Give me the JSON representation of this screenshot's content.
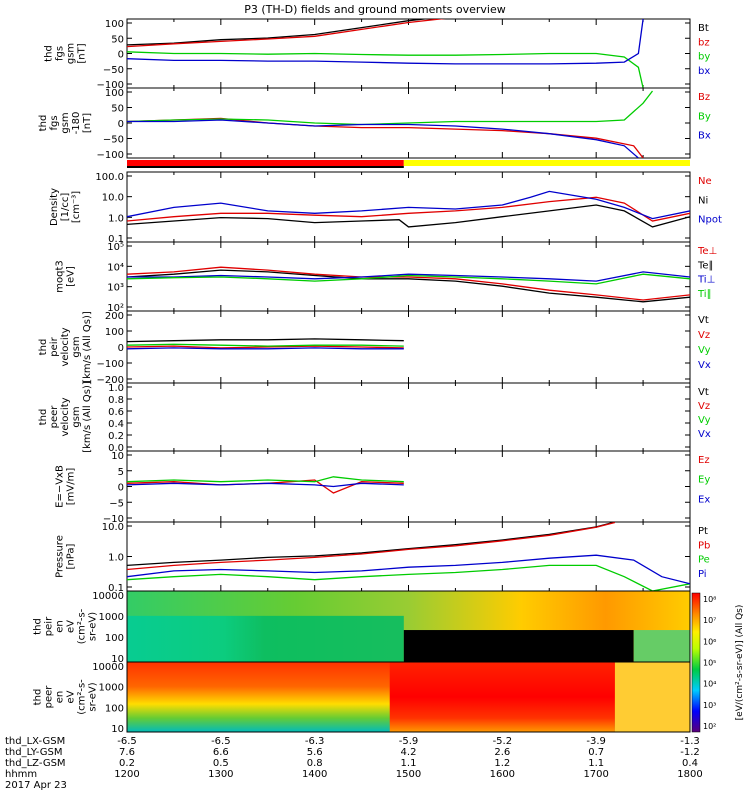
{
  "title": "P3 (TH-D) fields and ground moments overview",
  "date_label": "2017 Apr 23",
  "colors": {
    "black": "#000000",
    "red": "#e00000",
    "green": "#00cc00",
    "blue": "#0000cc",
    "yellow": "#ffff00",
    "bar_red": "#ff0000"
  },
  "chart_data": [
    {
      "type": "line",
      "panel": "fgs_gsm",
      "ylabel": [
        "thd",
        "fgs",
        "gsm",
        "[nT]"
      ],
      "yticks": [
        "100",
        "50",
        "0",
        "−50",
        "−100"
      ],
      "ylim": [
        -100,
        100
      ],
      "series": [
        {
          "name": "Bt",
          "color": "black",
          "x": [
            12.0,
            12.5,
            13.0,
            13.5,
            14.0,
            14.5,
            15.0,
            15.5,
            15.9
          ],
          "y": [
            25,
            30,
            40,
            45,
            55,
            75,
            95,
            110,
            150
          ]
        },
        {
          "name": "bz",
          "color": "red",
          "x": [
            12.0,
            12.5,
            13.0,
            13.5,
            14.0,
            14.5,
            15.0,
            15.5,
            15.9
          ],
          "y": [
            20,
            28,
            35,
            42,
            50,
            70,
            90,
            105,
            130
          ]
        },
        {
          "name": "by",
          "color": "green",
          "x": [
            12.0,
            12.5,
            13.0,
            13.5,
            14.0,
            14.5,
            15.0,
            15.5,
            16.0,
            16.5,
            17.0,
            17.3,
            17.45,
            17.5
          ],
          "y": [
            5,
            0,
            0,
            -2,
            0,
            -3,
            -5,
            -5,
            -3,
            0,
            0,
            -10,
            -40,
            -100
          ]
        },
        {
          "name": "bx",
          "color": "blue",
          "x": [
            12.0,
            12.5,
            13.0,
            13.5,
            14.0,
            14.5,
            15.0,
            15.5,
            16.0,
            16.5,
            17.0,
            17.3,
            17.45,
            17.5
          ],
          "y": [
            -15,
            -20,
            -20,
            -22,
            -22,
            -25,
            -28,
            -30,
            -30,
            -30,
            -28,
            -25,
            0,
            100
          ]
        }
      ]
    },
    {
      "type": "line",
      "panel": "fgs_gse",
      "ylabel": [
        "thd",
        "fgs",
        "gsm",
        "-180",
        "[nT]"
      ],
      "yticks": [
        "100",
        "50",
        "0",
        "−50",
        "−100"
      ],
      "ylim": [
        -120,
        110
      ],
      "series": [
        {
          "name": "Bz",
          "color": "red",
          "x": [
            12.0,
            12.5,
            13.0,
            13.5,
            14.0,
            14.5,
            15.0,
            15.5,
            16.0,
            16.5,
            17.0,
            17.4,
            17.5
          ],
          "y": [
            0,
            5,
            10,
            -5,
            -15,
            -20,
            -20,
            -25,
            -30,
            -40,
            -55,
            -80,
            -120
          ]
        },
        {
          "name": "By",
          "color": "green",
          "x": [
            12.0,
            12.5,
            13.0,
            13.5,
            14.0,
            14.5,
            15.0,
            15.5,
            16.0,
            16.5,
            17.0,
            17.3,
            17.5,
            17.6
          ],
          "y": [
            0,
            5,
            8,
            5,
            -5,
            -10,
            -5,
            0,
            0,
            0,
            0,
            5,
            60,
            100
          ]
        },
        {
          "name": "Bx",
          "color": "blue",
          "x": [
            12.0,
            12.5,
            13.0,
            13.5,
            14.0,
            14.5,
            15.0,
            15.5,
            16.0,
            16.5,
            17.0,
            17.3,
            17.45
          ],
          "y": [
            0,
            0,
            5,
            -5,
            -15,
            -10,
            -10,
            -15,
            -25,
            -40,
            -60,
            -80,
            -120
          ]
        }
      ]
    },
    {
      "type": "line",
      "panel": "density",
      "log_scale": true,
      "ylabel": [
        "Density",
        "[1/cc]",
        "[cm⁻³]"
      ],
      "yticks": [
        "100.0",
        "10.0",
        "1.0",
        "0.1"
      ],
      "ylim": [
        0.05,
        200
      ],
      "series": [
        {
          "name": "Ne",
          "color": "red",
          "x": [
            12.0,
            12.5,
            13.0,
            13.5,
            14.0,
            14.5,
            15.0,
            15.5,
            16.0,
            16.5,
            17.0,
            17.3,
            17.6,
            18.0
          ],
          "y": [
            0.6,
            1.0,
            1.5,
            1.5,
            1.2,
            1.0,
            1.5,
            2.0,
            3.0,
            6.0,
            10.0,
            5.0,
            0.6,
            1.5
          ]
        },
        {
          "name": "Ni",
          "color": "black",
          "x": [
            12.0,
            12.5,
            13.0,
            13.5,
            14.0,
            14.5,
            14.9,
            15.0,
            15.5,
            16.0,
            16.5,
            17.0,
            17.3,
            17.6,
            18.0
          ],
          "y": [
            0.4,
            0.6,
            0.9,
            0.8,
            0.5,
            0.6,
            0.7,
            0.3,
            0.5,
            1.0,
            2.0,
            4.0,
            2.0,
            0.3,
            1.0
          ]
        },
        {
          "name": "Npot",
          "color": "blue",
          "x": [
            12.0,
            12.5,
            13.0,
            13.5,
            14.0,
            14.5,
            15.0,
            15.5,
            16.0,
            16.3,
            16.5,
            17.0,
            17.3,
            17.6,
            18.0
          ],
          "y": [
            1.0,
            3.0,
            5.0,
            2.0,
            1.5,
            2.0,
            3.0,
            2.5,
            4.0,
            10.0,
            20.0,
            8.0,
            3.0,
            0.8,
            2.0
          ]
        }
      ]
    },
    {
      "type": "line",
      "panel": "temperature",
      "log_scale": true,
      "ylabel": [
        "moqt3",
        "[eV]"
      ],
      "yticks": [
        "10⁵",
        "10⁴",
        "10³",
        "10²"
      ],
      "ylim": [
        100,
        100000
      ],
      "series": [
        {
          "name": "Te⊥",
          "color": "red",
          "x": [
            12.0,
            12.5,
            13.0,
            13.5,
            14.0,
            14.5,
            15.0,
            15.5,
            16.0,
            16.5,
            17.0,
            17.5,
            18.0
          ],
          "y": [
            4000,
            5000,
            8000,
            6000,
            4000,
            3000,
            3000,
            2500,
            1500,
            800,
            500,
            300,
            500
          ]
        },
        {
          "name": "Te∥",
          "color": "black",
          "x": [
            12.0,
            12.5,
            13.0,
            13.5,
            14.0,
            14.5,
            15.0,
            15.5,
            16.0,
            16.5,
            17.0,
            17.5,
            18.0
          ],
          "y": [
            3000,
            4000,
            6000,
            5000,
            3500,
            2500,
            2500,
            2000,
            1200,
            600,
            400,
            250,
            400
          ]
        },
        {
          "name": "Ti⊥",
          "color": "blue",
          "x": [
            12.0,
            12.5,
            13.0,
            13.5,
            14.0,
            14.5,
            15.0,
            15.5,
            16.0,
            16.5,
            17.0,
            17.5,
            18.0
          ],
          "y": [
            3000,
            3000,
            3500,
            3000,
            2500,
            3000,
            4000,
            3500,
            3000,
            2500,
            2000,
            5000,
            3000
          ]
        },
        {
          "name": "Ti∥",
          "color": "green",
          "x": [
            12.0,
            12.5,
            13.0,
            13.5,
            14.0,
            14.5,
            15.0,
            15.5,
            16.0,
            16.5,
            17.0,
            17.5,
            18.0
          ],
          "y": [
            2500,
            2800,
            3000,
            2500,
            2000,
            2500,
            3500,
            3000,
            2500,
            2000,
            1500,
            4000,
            2500
          ]
        }
      ]
    },
    {
      "type": "line",
      "panel": "peir_velocity",
      "ylabel": [
        "thd",
        "peir",
        "velocity",
        "gsm",
        "[km/s (All Qs)]"
      ],
      "yticks": [
        "200",
        "100",
        "0",
        "−100",
        "−200"
      ],
      "ylim": [
        -200,
        200
      ],
      "series": [
        {
          "name": "Vt",
          "color": "black",
          "x": [
            12.0,
            12.5,
            13.0,
            13.5,
            14.0,
            14.5,
            14.95
          ],
          "y": [
            30,
            35,
            40,
            40,
            45,
            40,
            35
          ]
        },
        {
          "name": "Vz",
          "color": "red",
          "x": [
            12.0,
            12.5,
            13.0,
            13.5,
            14.0,
            14.5,
            14.95
          ],
          "y": [
            0,
            5,
            -5,
            0,
            5,
            0,
            -5
          ]
        },
        {
          "name": "Vy",
          "color": "green",
          "x": [
            12.0,
            12.5,
            13.0,
            13.5,
            14.0,
            14.5,
            14.95
          ],
          "y": [
            10,
            15,
            10,
            5,
            10,
            10,
            5
          ]
        },
        {
          "name": "Vx",
          "color": "blue",
          "x": [
            12.0,
            12.5,
            13.0,
            13.5,
            14.0,
            14.5,
            14.95
          ],
          "y": [
            -10,
            -5,
            -10,
            -10,
            -5,
            -10,
            -10
          ]
        }
      ]
    },
    {
      "type": "line",
      "panel": "peer_velocity",
      "ylabel": [
        "thd",
        "peer",
        "velocity",
        "gsm",
        "[km/s (All Qs)]"
      ],
      "yticks": [
        "1.0",
        "0.8",
        "0.6",
        "0.4",
        "0.2",
        "0.0"
      ],
      "ylim": [
        0,
        1
      ],
      "series": [
        {
          "name": "Vt",
          "color": "black",
          "x": [],
          "y": []
        },
        {
          "name": "Vz",
          "color": "red",
          "x": [],
          "y": []
        },
        {
          "name": "Vy",
          "color": "green",
          "x": [],
          "y": []
        },
        {
          "name": "Vx",
          "color": "blue",
          "x": [],
          "y": []
        }
      ]
    },
    {
      "type": "line",
      "panel": "efield",
      "ylabel": [
        "E=−VxB",
        "[mV/m]"
      ],
      "yticks": [
        "10",
        "5",
        "0",
        "−5",
        "−10"
      ],
      "ylim": [
        -12,
        10
      ],
      "series": [
        {
          "name": "Ez",
          "color": "red",
          "x": [
            12.0,
            12.5,
            13.0,
            13.5,
            14.0,
            14.2,
            14.5,
            14.95
          ],
          "y": [
            0,
            0.5,
            -0.5,
            0,
            1,
            -3,
            0.5,
            0
          ]
        },
        {
          "name": "Ey",
          "color": "green",
          "x": [
            12.0,
            12.5,
            13.0,
            13.5,
            14.0,
            14.2,
            14.5,
            14.95
          ],
          "y": [
            0.5,
            1,
            0.5,
            1,
            0.5,
            2,
            1,
            0.5
          ]
        },
        {
          "name": "Ex",
          "color": "blue",
          "x": [
            12.0,
            12.5,
            13.0,
            13.5,
            14.0,
            14.2,
            14.5,
            14.95
          ],
          "y": [
            -0.5,
            0,
            -0.5,
            0,
            -0.5,
            -1,
            0,
            -0.5
          ]
        }
      ]
    },
    {
      "type": "line",
      "panel": "pressure",
      "log_scale": true,
      "ylabel": [
        "Pressure",
        "[nPa]"
      ],
      "yticks": [
        "10.0",
        "1.0",
        "0.1"
      ],
      "ylim": [
        0.05,
        40
      ],
      "series": [
        {
          "name": "Pt",
          "color": "black",
          "x": [
            12.0,
            12.5,
            13.0,
            13.5,
            14.0,
            14.5,
            15.0,
            15.5,
            16.0,
            16.5,
            17.0,
            17.2
          ],
          "y": [
            0.6,
            0.8,
            1.0,
            1.3,
            1.5,
            2.0,
            3.0,
            4.5,
            7.0,
            12.0,
            25.0,
            40.0
          ]
        },
        {
          "name": "Pb",
          "color": "red",
          "x": [
            12.0,
            12.5,
            13.0,
            13.5,
            14.0,
            14.5,
            15.0,
            15.5,
            16.0,
            16.5,
            17.0,
            17.2
          ],
          "y": [
            0.4,
            0.6,
            0.8,
            1.0,
            1.3,
            1.8,
            2.8,
            4.0,
            6.5,
            11.0,
            24.0,
            38.0
          ]
        },
        {
          "name": "Pe",
          "color": "green",
          "x": [
            12.0,
            12.5,
            13.0,
            13.5,
            14.0,
            14.5,
            15.0,
            15.5,
            16.0,
            16.5,
            17.0,
            17.3,
            17.6,
            18.0
          ],
          "y": [
            0.15,
            0.2,
            0.25,
            0.2,
            0.15,
            0.2,
            0.25,
            0.3,
            0.4,
            0.6,
            0.6,
            0.2,
            0.05,
            0.1
          ]
        },
        {
          "name": "Pi",
          "color": "blue",
          "x": [
            12.0,
            12.5,
            13.0,
            13.5,
            14.0,
            14.5,
            15.0,
            15.5,
            16.0,
            16.5,
            17.0,
            17.4,
            17.7,
            18.0
          ],
          "y": [
            0.2,
            0.35,
            0.4,
            0.35,
            0.3,
            0.35,
            0.5,
            0.6,
            0.8,
            1.2,
            1.6,
            1.0,
            0.2,
            0.1
          ]
        }
      ]
    },
    {
      "type": "heatmap",
      "panel": "peir_spectrogram",
      "ylabel": [
        "thd",
        "peir",
        "en",
        "eV",
        "(cm²-s-",
        "sr-eV)"
      ],
      "yticks": [
        "10000",
        "1000",
        "100",
        "10"
      ]
    },
    {
      "type": "heatmap",
      "panel": "peer_spectrogram",
      "ylabel": [
        "thd",
        "peer",
        "en",
        "eV",
        "(cm²-s-",
        "sr-eV)"
      ],
      "yticks": [
        "10000",
        "1000",
        "100",
        "10"
      ]
    }
  ],
  "colorbar": {
    "label": "[eV/(cm²-s-sr-eV)] (All Qs)",
    "ticks": [
      "10⁸",
      "10⁷",
      "10⁶",
      "10⁵",
      "10⁴",
      "10³",
      "10²"
    ]
  },
  "xaxis": {
    "rows": [
      {
        "label": "thd_LX-GSM",
        "values": [
          "-6.5",
          "-6.5",
          "-6.3",
          "-5.9",
          "-5.2",
          "-3.9",
          "-1.3"
        ]
      },
      {
        "label": "thd_LY-GSM",
        "values": [
          "7.6",
          "6.6",
          "5.6",
          "4.2",
          "2.6",
          "0.7",
          "-1.2"
        ]
      },
      {
        "label": "thd_LZ-GSM",
        "values": [
          "0.2",
          "0.5",
          "0.8",
          "1.1",
          "1.2",
          "1.1",
          "0.4"
        ]
      },
      {
        "label": "hhmm",
        "values": [
          "1200",
          "1300",
          "1400",
          "1500",
          "1600",
          "1700",
          "1800"
        ]
      }
    ]
  }
}
